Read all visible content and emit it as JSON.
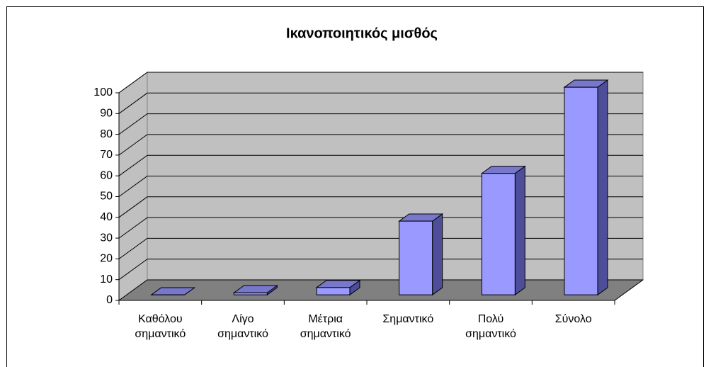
{
  "chart_data": {
    "type": "bar3d",
    "title": "Ικανοποιητικός μισθός",
    "categories": [
      "Καθόλου σημαντικό",
      "Λίγο σημαντικό",
      "Μέτρια σημαντικό",
      "Σημαντικό",
      "Πολύ σημαντικό",
      "Σύνολο"
    ],
    "values": [
      0,
      1,
      3.5,
      35.5,
      58.5,
      100
    ],
    "color": "#9999ff",
    "ylim": [
      0,
      100
    ],
    "yticks": [
      0,
      10,
      20,
      30,
      40,
      50,
      60,
      70,
      80,
      90,
      100
    ],
    "grid": true
  }
}
